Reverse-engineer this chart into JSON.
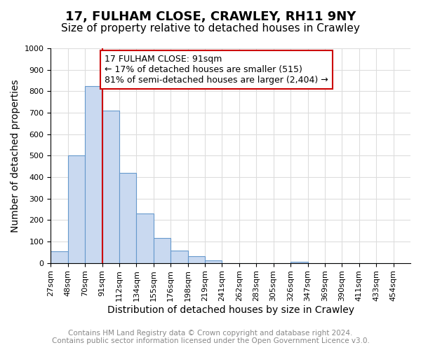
{
  "title": "17, FULHAM CLOSE, CRAWLEY, RH11 9NY",
  "subtitle": "Size of property relative to detached houses in Crawley",
  "xlabel": "Distribution of detached houses by size in Crawley",
  "ylabel": "Number of detached properties",
  "bin_labels": [
    "27sqm",
    "48sqm",
    "70sqm",
    "91sqm",
    "112sqm",
    "134sqm",
    "155sqm",
    "176sqm",
    "198sqm",
    "219sqm",
    "241sqm",
    "262sqm",
    "283sqm",
    "305sqm",
    "326sqm",
    "347sqm",
    "369sqm",
    "390sqm",
    "411sqm",
    "433sqm",
    "454sqm"
  ],
  "bar_values": [
    55,
    500,
    825,
    710,
    420,
    230,
    118,
    58,
    33,
    12,
    0,
    0,
    0,
    0,
    5,
    0,
    0,
    0,
    0,
    0
  ],
  "bar_color": "#c9d9f0",
  "bar_edge_color": "#6699cc",
  "vline_x_index": 3,
  "vline_color": "#cc0000",
  "annotation_text": "17 FULHAM CLOSE: 91sqm\n← 17% of detached houses are smaller (515)\n81% of semi-detached houses are larger (2,404) →",
  "annotation_box_color": "#ffffff",
  "annotation_box_edge_color": "#cc0000",
  "ylim": [
    0,
    1000
  ],
  "yticks": [
    0,
    100,
    200,
    300,
    400,
    500,
    600,
    700,
    800,
    900,
    1000
  ],
  "footer_line1": "Contains HM Land Registry data © Crown copyright and database right 2024.",
  "footer_line2": "Contains public sector information licensed under the Open Government Licence v3.0.",
  "bg_color": "#ffffff",
  "grid_color": "#dddddd",
  "title_fontsize": 13,
  "subtitle_fontsize": 11,
  "axis_label_fontsize": 10,
  "tick_fontsize": 8,
  "annotation_fontsize": 9,
  "footer_fontsize": 7.5
}
